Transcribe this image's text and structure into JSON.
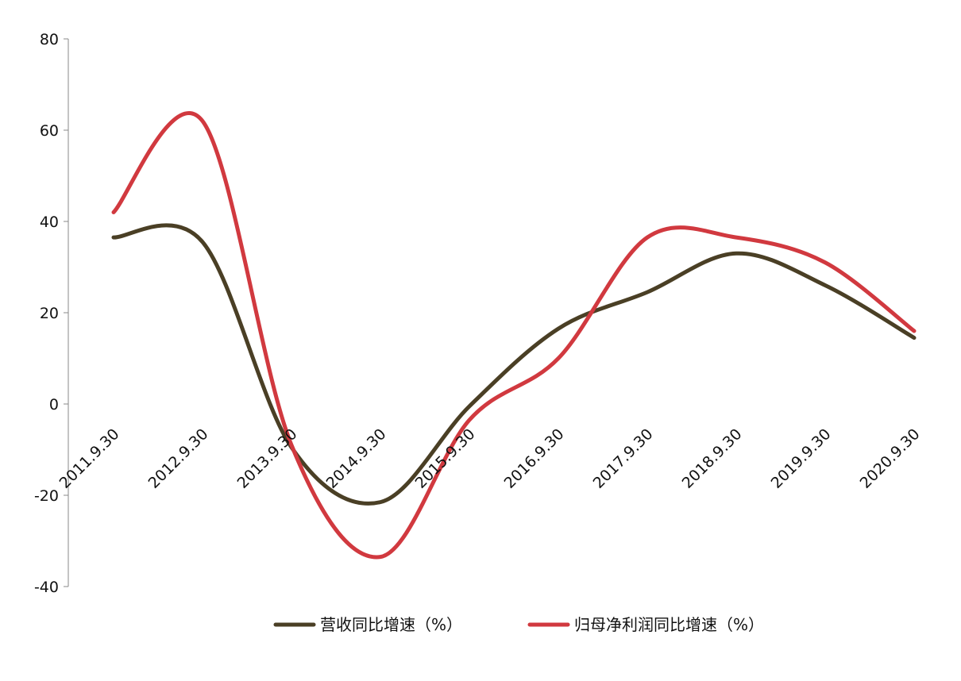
{
  "chart_data": {
    "type": "line",
    "x": [
      "2011.9.30",
      "2012.9.30",
      "2013.9.30",
      "2014.9.30",
      "2015.9.30",
      "2016.9.30",
      "2017.9.30",
      "2018.9.30",
      "2019.9.30",
      "2020.9.30"
    ],
    "ylim": [
      -40,
      80
    ],
    "yticks": [
      -40,
      -20,
      0,
      20,
      40,
      60,
      80
    ],
    "grid": false,
    "legend_position": "bottom",
    "series": [
      {
        "name": "营收同比增速（%）",
        "color": "#4a3f25",
        "values": [
          36.5,
          35.5,
          -9.5,
          -21.5,
          -0.5,
          16.5,
          24.5,
          33.0,
          26.0,
          14.5
        ]
      },
      {
        "name": "归母净利润同比增速（%）",
        "color": "#d1393f",
        "values": [
          42.0,
          62.0,
          -9.0,
          -33.5,
          -3.5,
          10.0,
          36.5,
          36.5,
          31.0,
          16.0
        ]
      }
    ]
  }
}
